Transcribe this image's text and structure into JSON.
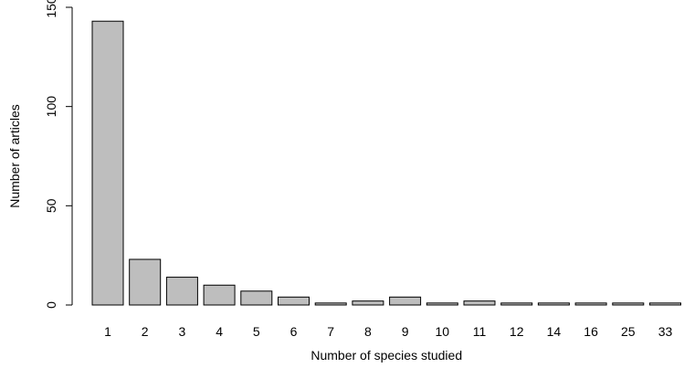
{
  "chart_data": {
    "type": "bar",
    "xlabel": "Number of species studied",
    "ylabel": "Number of articles",
    "categories": [
      "1",
      "2",
      "3",
      "4",
      "5",
      "6",
      "7",
      "8",
      "9",
      "10",
      "11",
      "12",
      "14",
      "16",
      "25",
      "33"
    ],
    "values": [
      143,
      23,
      14,
      10,
      7,
      4,
      1,
      2,
      4,
      1,
      2,
      1,
      1,
      1,
      1,
      1
    ],
    "ylim": [
      0,
      150
    ],
    "yticks": [
      0,
      50,
      100,
      150
    ],
    "grid": false,
    "legend": "none",
    "bar_color": "#BEBEBE",
    "edge_color": "#000000"
  }
}
